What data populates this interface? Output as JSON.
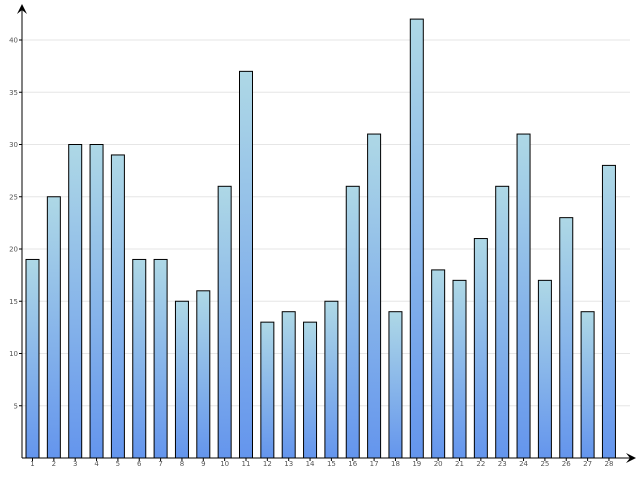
{
  "chart_data": {
    "type": "bar",
    "categories": [
      "1",
      "2",
      "3",
      "4",
      "5",
      "6",
      "7",
      "8",
      "9",
      "10",
      "11",
      "12",
      "13",
      "14",
      "15",
      "16",
      "17",
      "18",
      "19",
      "20",
      "21",
      "22",
      "23",
      "24",
      "25",
      "26",
      "27",
      "28"
    ],
    "values": [
      19,
      25,
      30,
      30,
      29,
      19,
      19,
      15,
      16,
      26,
      37,
      13,
      14,
      13,
      15,
      26,
      31,
      14,
      42,
      18,
      17,
      21,
      26,
      31,
      17,
      23,
      14,
      28
    ],
    "yticks": [
      "5",
      "10",
      "15",
      "20",
      "25",
      "30",
      "35",
      "40"
    ],
    "ylim": [
      0,
      44
    ],
    "grid": true,
    "colors": {
      "bar_top": "#aed8e6",
      "bar_bottom": "#6495ed",
      "grid": "#e6e6e6"
    }
  }
}
